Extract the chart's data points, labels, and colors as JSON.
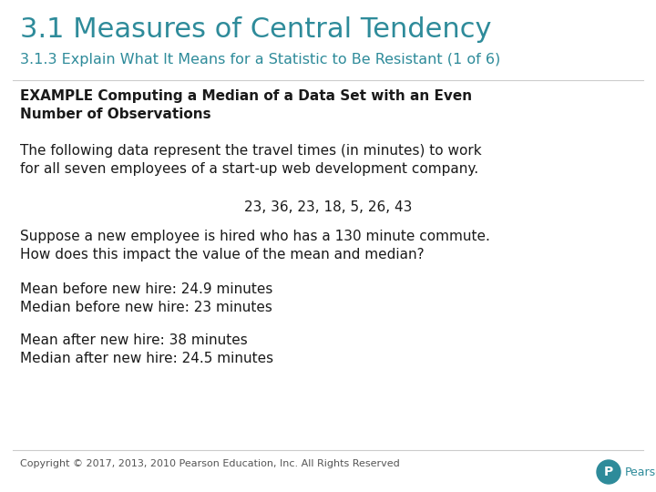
{
  "bg_color": "#ffffff",
  "title_text": "3.1 Measures of Central Tendency",
  "title_color": "#2E8B9A",
  "subtitle_text": "3.1.3 Explain What It Means for a Statistic to Be Resistant (1 of 6)",
  "subtitle_color": "#2E8B9A",
  "example_bold": "EXAMPLE Computing a Median of a Data Set with an Even\nNumber of Observations",
  "para1": "The following data represent the travel times (in minutes) to work\nfor all seven employees of a start-up web development company.",
  "data_line": "23, 36, 23, 18, 5, 26, 43",
  "para2": "Suppose a new employee is hired who has a 130 minute commute.\nHow does this impact the value of the mean and median?",
  "stats_before": "Mean before new hire: 24.9 minutes\nMedian before new hire: 23 minutes",
  "stats_after": "Mean after new hire: 38 minutes\nMedian after new hire: 24.5 minutes",
  "footer_text": "Copyright © 2017, 2013, 2010 Pearson Education, Inc. All Rights Reserved",
  "footer_color": "#555555",
  "pearson_circle_color": "#2E8B9A",
  "text_color": "#1a1a1a",
  "title_fontsize": 22,
  "subtitle_fontsize": 11.5,
  "body_fontsize": 11,
  "example_fontsize": 11,
  "footer_fontsize": 8
}
